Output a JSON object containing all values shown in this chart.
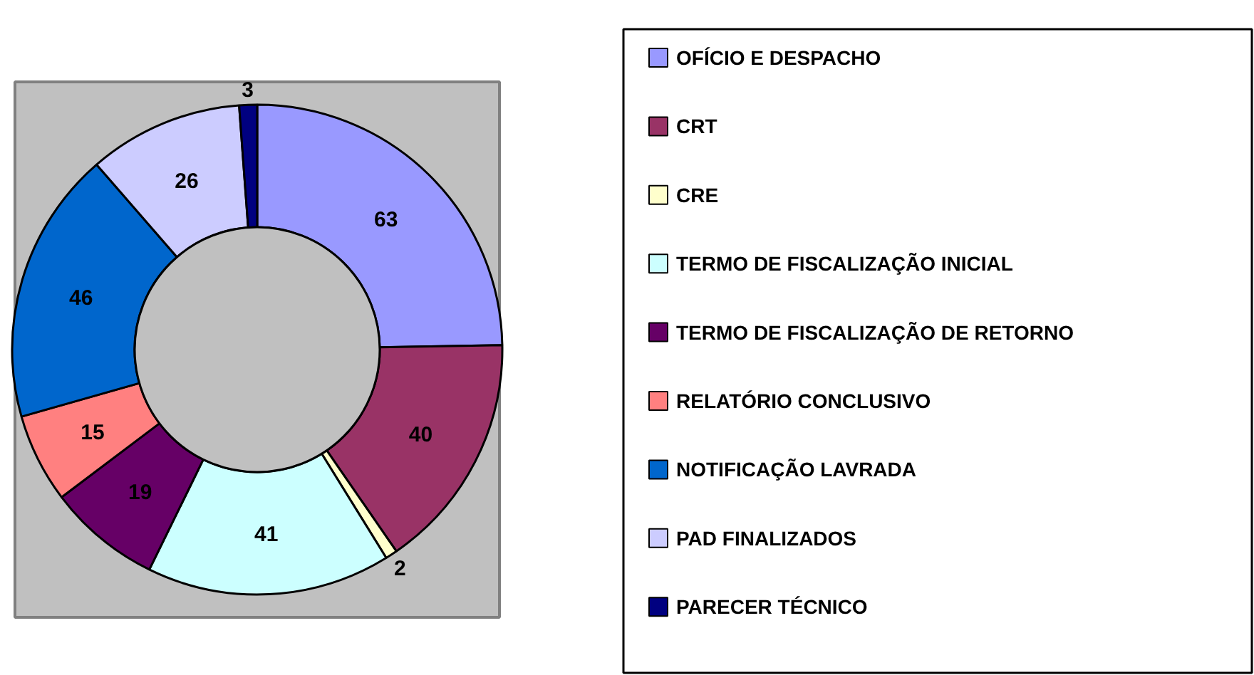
{
  "chart_data": {
    "type": "donut",
    "categories": [
      "OFÍCIO E DESPACHO",
      "CRT",
      "CRE",
      "TERMO DE FISCALIZAÇÃO INICIAL",
      "TERMO DE FISCALIZAÇÃO DE RETORNO",
      "RELATÓRIO CONCLUSIVO",
      "NOTIFICAÇÃO LAVRADA",
      "PAD FINALIZADOS",
      "PARECER TÉCNICO"
    ],
    "values": [
      63,
      40,
      2,
      41,
      19,
      15,
      46,
      26,
      3
    ],
    "colors": [
      "#9999ff",
      "#993366",
      "#ffffcc",
      "#ccffff",
      "#660066",
      "#ff8080",
      "#0066cc",
      "#ccccff",
      "#000080"
    ],
    "data_labels": true,
    "legend": "right"
  }
}
